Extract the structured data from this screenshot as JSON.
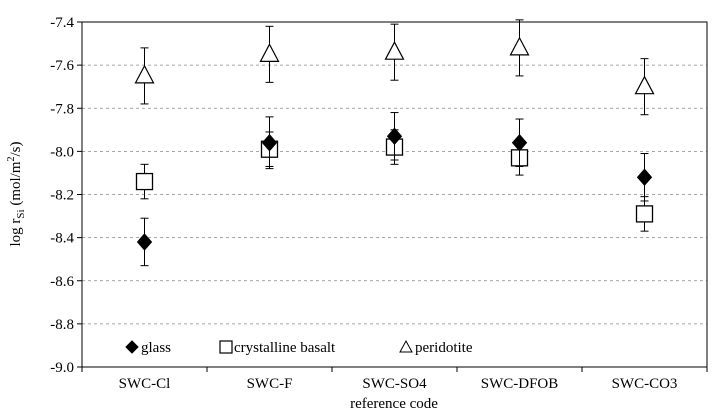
{
  "chart_data": {
    "type": "scatter",
    "categories": [
      "SWC-Cl",
      "SWC-F",
      "SWC-SO4",
      "SWC-DFOB",
      "SWC-CO3"
    ],
    "xlabel": "reference code",
    "ylabel_main": "log r",
    "ylabel_sub": "Si",
    "ylabel_units": " (mol/m",
    "ylabel_sup": "2",
    "ylabel_tail": "/s)",
    "ylim": [
      -9.0,
      -7.4
    ],
    "yticks": [
      -7.4,
      -7.6,
      -7.8,
      -8.0,
      -8.2,
      -8.4,
      -8.6,
      -8.8,
      -9.0
    ],
    "ytick_labels": [
      "-7.4",
      "-7.6",
      "-7.8",
      "-8.0",
      "-8.2",
      "-8.4",
      "-8.6",
      "-8.8",
      "-9.0"
    ],
    "grid": "horizontal dashed",
    "legend_placement": "bottom-left, single row",
    "series": [
      {
        "name": "glass",
        "marker": "filled-diamond",
        "values": [
          -8.42,
          -7.96,
          -7.93,
          -7.96,
          -8.12
        ],
        "err": [
          0.11,
          0.12,
          0.11,
          0.11,
          0.11
        ]
      },
      {
        "name": "crystalline basalt",
        "marker": "open-square",
        "values": [
          -8.14,
          -7.99,
          -7.98,
          -8.03,
          -8.29
        ],
        "err": [
          0.08,
          0.08,
          0.08,
          0.08,
          0.08
        ]
      },
      {
        "name": "peridotite",
        "marker": "open-triangle",
        "values": [
          -7.65,
          -7.55,
          -7.54,
          -7.52,
          -7.7
        ],
        "err": [
          0.13,
          0.13,
          0.13,
          0.13,
          0.13
        ]
      }
    ]
  }
}
